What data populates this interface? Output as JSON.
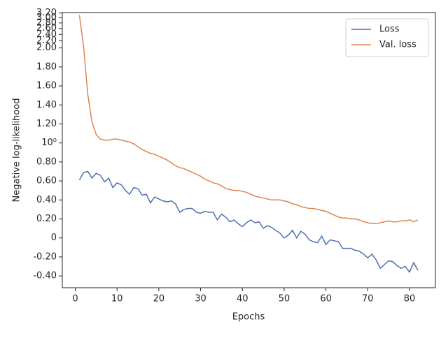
{
  "chart_data": {
    "type": "line",
    "xlabel": "Epochs",
    "ylabel": "Negative log-likelihood",
    "x": [
      1,
      2,
      3,
      4,
      5,
      6,
      7,
      8,
      9,
      10,
      11,
      12,
      13,
      14,
      15,
      16,
      17,
      18,
      19,
      20,
      21,
      22,
      23,
      24,
      25,
      26,
      27,
      28,
      29,
      30,
      31,
      32,
      33,
      34,
      35,
      36,
      37,
      38,
      39,
      40,
      41,
      42,
      43,
      44,
      45,
      46,
      47,
      48,
      49,
      50,
      51,
      52,
      53,
      54,
      55,
      56,
      57,
      58,
      59,
      60,
      61,
      62,
      63,
      64,
      65,
      66,
      67,
      68,
      69,
      70,
      71,
      72,
      73,
      74,
      75,
      76,
      77,
      78,
      79,
      80,
      81,
      82
    ],
    "series": [
      {
        "name": "Loss",
        "color": "#4c72b0",
        "values": [
          0.61,
          0.69,
          0.7,
          0.63,
          0.68,
          0.66,
          0.59,
          0.63,
          0.53,
          0.58,
          0.56,
          0.5,
          0.46,
          0.53,
          0.52,
          0.45,
          0.46,
          0.37,
          0.43,
          0.41,
          0.39,
          0.38,
          0.39,
          0.36,
          0.27,
          0.3,
          0.31,
          0.31,
          0.27,
          0.26,
          0.28,
          0.27,
          0.27,
          0.19,
          0.25,
          0.22,
          0.17,
          0.19,
          0.15,
          0.12,
          0.16,
          0.19,
          0.16,
          0.17,
          0.1,
          0.13,
          0.11,
          0.08,
          0.05,
          0.0,
          0.03,
          0.08,
          0.0,
          0.07,
          0.04,
          -0.02,
          -0.04,
          -0.05,
          0.02,
          -0.07,
          -0.02,
          -0.03,
          -0.04,
          -0.11,
          -0.11,
          -0.11,
          -0.13,
          -0.14,
          -0.17,
          -0.21,
          -0.17,
          -0.23,
          -0.32,
          -0.28,
          -0.24,
          -0.25,
          -0.29,
          -0.32,
          -0.3,
          -0.36,
          -0.26,
          -0.34
        ]
      },
      {
        "name": "Val. loss",
        "color": "#dd8452",
        "values": [
          3.11,
          2.04,
          1.51,
          1.22,
          1.09,
          1.04,
          1.03,
          1.03,
          1.04,
          1.04,
          1.03,
          1.02,
          1.01,
          0.99,
          0.96,
          0.93,
          0.91,
          0.89,
          0.88,
          0.86,
          0.84,
          0.82,
          0.79,
          0.76,
          0.74,
          0.73,
          0.71,
          0.69,
          0.67,
          0.65,
          0.62,
          0.6,
          0.58,
          0.57,
          0.55,
          0.52,
          0.51,
          0.5,
          0.5,
          0.49,
          0.48,
          0.46,
          0.44,
          0.43,
          0.42,
          0.41,
          0.4,
          0.4,
          0.4,
          0.39,
          0.38,
          0.36,
          0.35,
          0.33,
          0.32,
          0.31,
          0.31,
          0.3,
          0.29,
          0.28,
          0.26,
          0.24,
          0.22,
          0.21,
          0.21,
          0.2,
          0.2,
          0.19,
          0.17,
          0.16,
          0.15,
          0.15,
          0.16,
          0.17,
          0.18,
          0.17,
          0.17,
          0.18,
          0.18,
          0.19,
          0.17,
          0.19
        ]
      }
    ],
    "xlim": [
      -3.1,
      86.2
    ],
    "xticks": [
      0,
      10,
      20,
      30,
      40,
      50,
      60,
      70,
      80
    ],
    "ylim": [
      -0.524,
      3.22
    ],
    "yscale": "symlog",
    "linthresh": 2,
    "yticks": [
      {
        "value": -0.4,
        "label": "-0.40"
      },
      {
        "value": -0.2,
        "label": "-0.20"
      },
      0,
      {
        "value": 0.2,
        "label": "0.20"
      },
      {
        "value": 0.4,
        "label": "0.40"
      },
      {
        "value": 0.6,
        "label": "0.60"
      },
      {
        "value": 0.8,
        "label": "0.80"
      },
      {
        "value": 1,
        "label": "10⁰"
      },
      {
        "value": 1.2,
        "label": "1.20"
      },
      {
        "value": 1.4,
        "label": "1.40"
      },
      {
        "value": 1.6,
        "label": "1.60"
      },
      {
        "value": 1.8,
        "label": "1.80"
      },
      {
        "value": 2,
        "label": "2.00"
      },
      {
        "value": 2.2,
        "label": "2.20"
      },
      {
        "value": 2.4,
        "label": "2.40"
      },
      {
        "value": 2.6,
        "label": "2.60"
      },
      {
        "value": 2.8,
        "label": "2.80"
      },
      {
        "value": 3,
        "label": "3.00"
      },
      {
        "value": 3.2,
        "label": "3.20"
      }
    ],
    "legend": "upper right"
  }
}
